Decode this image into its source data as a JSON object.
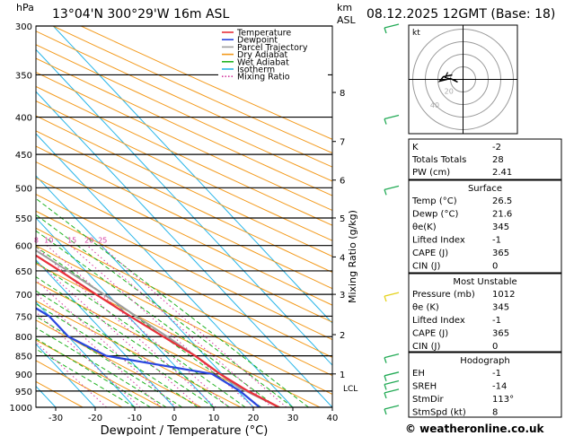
{
  "header": {
    "left_unit": "hPa",
    "location": "13°04'N  300°29'W  16m  ASL",
    "km_unit": "km",
    "asl_unit": "ASL",
    "datetime": "08.12.2025  12GMT  (Base: 18)"
  },
  "colors": {
    "temperature": "#e8303a",
    "dewpoint": "#2a46e0",
    "parcel": "#9e9e9e",
    "dry_adiabat": "#f39a1c",
    "wet_adiabat": "#22b322",
    "isotherm": "#29b6e8",
    "mixing_ratio": "#d43aa0"
  },
  "legend": [
    {
      "label": "Temperature",
      "color": "#e8303a",
      "style": "solid"
    },
    {
      "label": "Dewpoint",
      "color": "#2a46e0",
      "style": "solid"
    },
    {
      "label": "Parcel Trajectory",
      "color": "#9e9e9e",
      "style": "solid"
    },
    {
      "label": "Dry Adiabat",
      "color": "#f39a1c",
      "style": "solid"
    },
    {
      "label": "Wet Adiabat",
      "color": "#22b322",
      "style": "solid"
    },
    {
      "label": "Isotherm",
      "color": "#29b6e8",
      "style": "solid"
    },
    {
      "label": "Mixing Ratio",
      "color": "#d43aa0",
      "style": "dotted"
    }
  ],
  "chart_data": {
    "type": "line",
    "title": "Skew-T log-P diagram",
    "xlabel": "Dewpoint / Temperature (°C)",
    "ylabel": "hPa",
    "right_axis_label": "Mixing Ratio (g/kg)",
    "x_range": [
      -35,
      40
    ],
    "pressure_range": [
      300,
      1000
    ],
    "x_ticks": [
      -30,
      -20,
      -10,
      0,
      10,
      20,
      30,
      40
    ],
    "pressure_ticks": [
      300,
      350,
      400,
      450,
      500,
      550,
      600,
      650,
      700,
      750,
      800,
      850,
      900,
      950,
      1000
    ],
    "km_ticks": [
      {
        "km": "8",
        "p": 370
      },
      {
        "km": "7",
        "p": 432
      },
      {
        "km": "6",
        "p": 488
      },
      {
        "km": "5",
        "p": 550
      },
      {
        "km": "4",
        "p": 622
      },
      {
        "km": "3",
        "p": 700
      },
      {
        "km": "2",
        "p": 795
      },
      {
        "km": "1",
        "p": 900
      }
    ],
    "lcl": {
      "label": "LCL",
      "p": 940
    },
    "mixing_ratio_labels": [
      "1",
      "2",
      "3",
      "4",
      "6",
      "8",
      "10",
      "15",
      "20",
      "25"
    ],
    "series": [
      {
        "name": "Temperature",
        "points": [
          [
            1000,
            26.5
          ],
          [
            950,
            22.5
          ],
          [
            925,
            21.0
          ],
          [
            900,
            19.5
          ],
          [
            850,
            17.5
          ],
          [
            800,
            14.0
          ],
          [
            750,
            10.5
          ],
          [
            700,
            7.0
          ],
          [
            650,
            3.5
          ],
          [
            600,
            -0.5
          ],
          [
            550,
            -5.0
          ],
          [
            500,
            -10.5
          ],
          [
            450,
            -16.5
          ],
          [
            400,
            -23.5
          ],
          [
            350,
            -31.5
          ],
          [
            300,
            -41.0
          ]
        ]
      },
      {
        "name": "Dewpoint",
        "points": [
          [
            1000,
            21.6
          ],
          [
            950,
            20.5
          ],
          [
            900,
            17.5
          ],
          [
            850,
            -5.0
          ],
          [
            800,
            -10.0
          ],
          [
            750,
            -10.0
          ],
          [
            700,
            -14.0
          ],
          [
            650,
            -38.0
          ],
          [
            600,
            -48.0
          ],
          [
            550,
            -42.0
          ],
          [
            500,
            -42.0
          ],
          [
            450,
            -47.0
          ],
          [
            400,
            -65.0
          ],
          [
            350,
            -72.0
          ],
          [
            300,
            -80.0
          ]
        ]
      },
      {
        "name": "Parcel Trajectory",
        "points": [
          [
            1000,
            26.5
          ],
          [
            950,
            22.0
          ],
          [
            940,
            21.0
          ],
          [
            900,
            19.5
          ],
          [
            850,
            17.5
          ],
          [
            800,
            15.0
          ],
          [
            750,
            12.0
          ],
          [
            700,
            9.0
          ],
          [
            650,
            5.5
          ],
          [
            600,
            1.5
          ],
          [
            550,
            -3.0
          ],
          [
            500,
            -8.0
          ],
          [
            450,
            -14.0
          ],
          [
            400,
            -21.0
          ],
          [
            350,
            -29.5
          ],
          [
            300,
            -39.5
          ]
        ]
      }
    ]
  },
  "hodograph": {
    "unit_label": "kt",
    "ring_labels": [
      "20",
      "40"
    ]
  },
  "indices_panel": {
    "basic": [
      {
        "label": "K",
        "value": "-2"
      },
      {
        "label": "Totals Totals",
        "value": "28"
      },
      {
        "label": "PW (cm)",
        "value": "2.41"
      }
    ],
    "surface_title": "Surface",
    "surface": [
      {
        "label": "Temp (°C)",
        "value": "26.5"
      },
      {
        "label": "Dewp (°C)",
        "value": "21.6"
      },
      {
        "label": "θe(K)",
        "value": "345"
      },
      {
        "label": "Lifted Index",
        "value": "-1"
      },
      {
        "label": "CAPE (J)",
        "value": "365"
      },
      {
        "label": "CIN (J)",
        "value": "0"
      }
    ],
    "most_unstable_title": "Most Unstable",
    "most_unstable": [
      {
        "label": "Pressure (mb)",
        "value": "1012"
      },
      {
        "label": "θe (K)",
        "value": "345"
      },
      {
        "label": "Lifted Index",
        "value": "-1"
      },
      {
        "label": "CAPE (J)",
        "value": "365"
      },
      {
        "label": "CIN (J)",
        "value": "0"
      }
    ],
    "hodograph_title": "Hodograph",
    "hodo_rows": [
      {
        "label": "EH",
        "value": "-1"
      },
      {
        "label": "SREH",
        "value": "-14"
      },
      {
        "label": "StmDir",
        "value": "113°"
      },
      {
        "label": "StmSpd (kt)",
        "value": "8"
      }
    ]
  },
  "footer": {
    "copyright": "© weatheronline.co.uk"
  }
}
